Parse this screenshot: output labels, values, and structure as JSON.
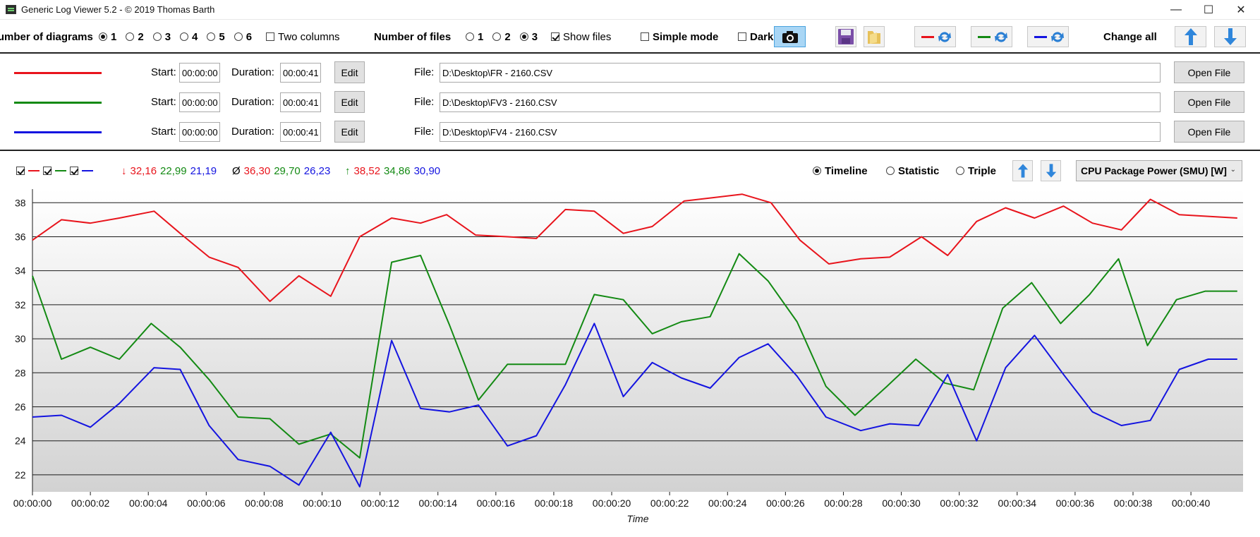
{
  "window": {
    "title": "Generic Log Viewer 5.2 - © 2019 Thomas Barth",
    "minimize": "—",
    "maximize": "☐",
    "close": "✕"
  },
  "toolbar": {
    "diagrams_label": "Number of diagrams",
    "diagram_options": [
      "1",
      "2",
      "3",
      "4",
      "5",
      "6"
    ],
    "diagram_selected": "1",
    "two_columns_label": "Two columns",
    "files_label": "Number of files",
    "file_options": [
      "1",
      "2",
      "3"
    ],
    "file_selected": "3",
    "show_files_label": "Show files",
    "simple_mode_label": "Simple mode",
    "dark_label": "Dark",
    "change_all_label": "Change all"
  },
  "files": [
    {
      "color": "#e8141c",
      "start_label": "Start:",
      "start": "00:00:00",
      "duration_label": "Duration:",
      "duration": "00:00:41",
      "edit": "Edit",
      "file_label": "File:",
      "path": "D:\\Desktop\\FR - 2160.CSV",
      "open": "Open File"
    },
    {
      "color": "#138a13",
      "start_label": "Start:",
      "start": "00:00:00",
      "duration_label": "Duration:",
      "duration": "00:00:41",
      "edit": "Edit",
      "file_label": "File:",
      "path": "D:\\Desktop\\FV3 - 2160.CSV",
      "open": "Open File"
    },
    {
      "color": "#1414e0",
      "start_label": "Start:",
      "start": "00:00:00",
      "duration_label": "Duration:",
      "duration": "00:00:41",
      "edit": "Edit",
      "file_label": "File:",
      "path": "D:\\Desktop\\FV4 - 2160.CSV",
      "open": "Open File"
    }
  ],
  "stats": {
    "min_symbol": "↓",
    "avg_symbol": "Ø",
    "max_symbol": "↑",
    "min": [
      "32,16",
      "22,99",
      "21,19"
    ],
    "avg": [
      "36,30",
      "29,70",
      "26,23"
    ],
    "max": [
      "38,52",
      "34,86",
      "30,90"
    ]
  },
  "view": {
    "options": [
      "Timeline",
      "Statistic",
      "Triple"
    ],
    "selected": "Timeline",
    "metric": "CPU Package Power (SMU) [W]"
  },
  "chart_data": {
    "type": "line",
    "xlabel": "Time",
    "ylabel": "",
    "ylim": [
      21.0,
      38.8
    ],
    "y_ticks": [
      22,
      24,
      26,
      28,
      30,
      32,
      34,
      36,
      38
    ],
    "x_ticks": [
      "00:00:00",
      "00:00:02",
      "00:00:04",
      "00:00:06",
      "00:00:08",
      "00:00:10",
      "00:00:12",
      "00:00:14",
      "00:00:16",
      "00:00:18",
      "00:00:20",
      "00:00:22",
      "00:00:24",
      "00:00:26",
      "00:00:28",
      "00:00:30",
      "00:00:32",
      "00:00:34",
      "00:00:36",
      "00:00:38",
      "00:00:40"
    ],
    "x_range_seconds": [
      0,
      41.8
    ],
    "grid": "horizontal",
    "series": [
      {
        "color": "#e8141c",
        "x": [
          0,
          1,
          2,
          3,
          4.2,
          5.1,
          6.1,
          7.1,
          8.2,
          9.2,
          10.3,
          11.3,
          12.4,
          13.4,
          14.3,
          15.3,
          16.4,
          17.4,
          18.4,
          19.4,
          20.4,
          21.4,
          22.5,
          23.5,
          24.5,
          25.5,
          26.5,
          27.5,
          28.6,
          29.6,
          30.7,
          31.6,
          32.6,
          33.6,
          34.6,
          35.6,
          36.6,
          37.6,
          38.6,
          39.6,
          40.6,
          41.6
        ],
        "values": [
          35.8,
          37.0,
          36.8,
          37.1,
          37.5,
          36.2,
          34.8,
          34.2,
          32.2,
          33.7,
          32.5,
          36.0,
          37.1,
          36.8,
          37.3,
          36.1,
          36.0,
          35.9,
          37.6,
          37.5,
          36.2,
          36.6,
          38.1,
          38.3,
          38.5,
          38.0,
          35.8,
          34.4,
          34.7,
          34.8,
          36.0,
          34.9,
          36.9,
          37.7,
          37.1,
          37.8,
          36.8,
          36.4,
          38.2,
          37.3,
          37.2,
          37.1
        ]
      },
      {
        "color": "#138a13",
        "x": [
          0,
          1,
          2,
          3,
          4.1,
          5.1,
          6.1,
          7.1,
          8.2,
          9.2,
          10.3,
          11.3,
          12.4,
          13.4,
          14.4,
          15.4,
          16.4,
          17.4,
          18.4,
          19.4,
          20.4,
          21.4,
          22.4,
          23.4,
          24.4,
          25.4,
          26.4,
          27.4,
          28.4,
          29.5,
          30.5,
          31.5,
          32.5,
          33.5,
          34.5,
          35.5,
          36.5,
          37.5,
          38.5,
          39.5,
          40.5,
          41.6
        ],
        "values": [
          33.7,
          28.8,
          29.5,
          28.8,
          30.9,
          29.5,
          27.6,
          25.4,
          25.3,
          23.8,
          24.4,
          23.0,
          34.5,
          34.9,
          30.8,
          26.4,
          28.5,
          28.5,
          28.5,
          32.6,
          32.3,
          30.3,
          31.0,
          31.3,
          35.0,
          33.4,
          31.0,
          27.2,
          25.5,
          27.2,
          28.8,
          27.4,
          27.0,
          31.8,
          33.3,
          30.9,
          32.6,
          34.7,
          29.6,
          32.3,
          32.8,
          32.8
        ]
      },
      {
        "color": "#1414e0",
        "x": [
          0,
          1,
          2,
          3,
          4.2,
          5.1,
          6.1,
          7.1,
          8.2,
          9.2,
          10.3,
          11.3,
          12.4,
          13.4,
          14.4,
          15.4,
          16.4,
          17.4,
          18.4,
          19.4,
          20.4,
          21.4,
          22.4,
          23.4,
          24.4,
          25.4,
          26.4,
          27.4,
          28.6,
          29.6,
          30.6,
          31.6,
          32.6,
          33.6,
          34.6,
          35.6,
          36.6,
          37.6,
          38.6,
          39.6,
          40.6,
          41.6
        ],
        "values": [
          25.4,
          25.5,
          24.8,
          26.2,
          28.3,
          28.2,
          24.9,
          22.9,
          22.5,
          21.4,
          24.5,
          21.3,
          29.9,
          25.9,
          25.7,
          26.1,
          23.7,
          24.3,
          27.3,
          30.9,
          26.6,
          28.6,
          27.7,
          27.1,
          28.9,
          29.7,
          27.8,
          25.4,
          24.6,
          25.0,
          24.9,
          27.9,
          24.0,
          28.3,
          30.2,
          27.9,
          25.7,
          24.9,
          25.2,
          28.2,
          28.8,
          28.8
        ]
      }
    ]
  }
}
